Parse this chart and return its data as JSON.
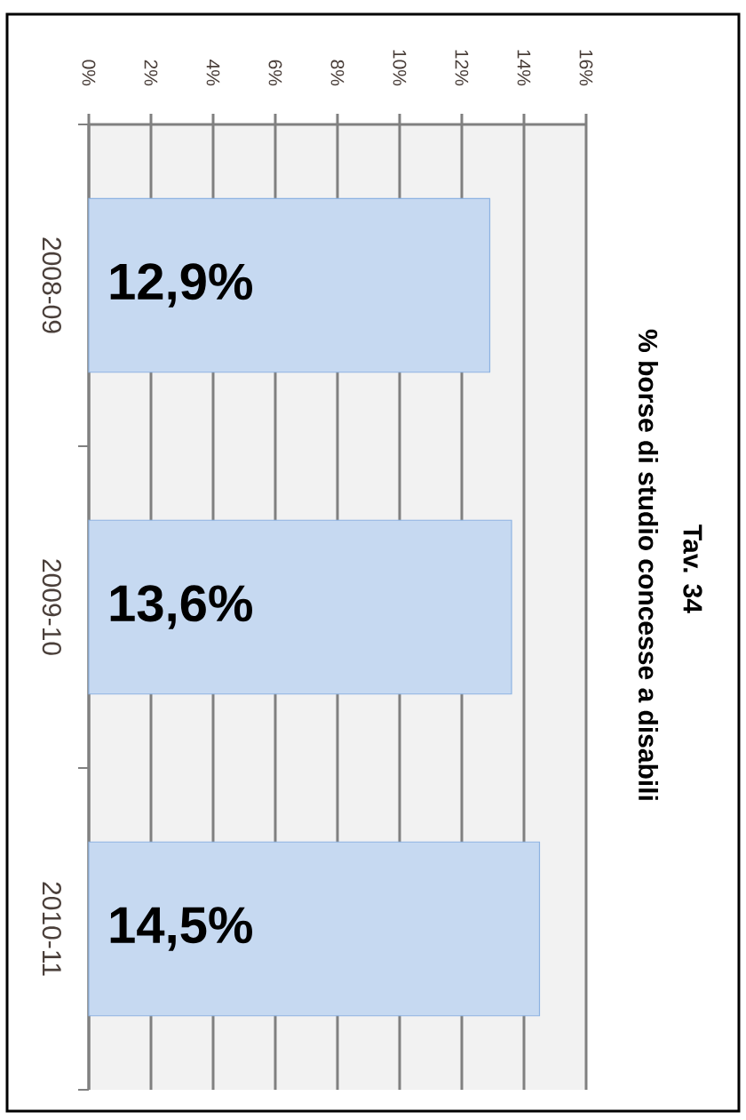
{
  "chart_data": {
    "type": "bar",
    "orientation": "horizontal",
    "title": "Tav. 34",
    "subtitle": "% borse di studio concesse a disabili",
    "categories": [
      "2008-09",
      "2009-10",
      "2010-11"
    ],
    "values": [
      12.9,
      13.6,
      14.5
    ],
    "value_labels": [
      "12,9%",
      "13,6%",
      "14,5%"
    ],
    "color": "#c6d9f1",
    "xlim": [
      0,
      16
    ],
    "xticks": [
      {
        "value": 0,
        "label": "0%"
      },
      {
        "value": 2,
        "label": "2%"
      },
      {
        "value": 4,
        "label": "4%"
      },
      {
        "value": 6,
        "label": "6%"
      },
      {
        "value": 8,
        "label": "8%"
      },
      {
        "value": 10,
        "label": "10%"
      },
      {
        "value": 12,
        "label": "12%"
      },
      {
        "value": 14,
        "label": "14%"
      },
      {
        "value": 16,
        "label": "16%"
      }
    ],
    "grid": "x"
  }
}
